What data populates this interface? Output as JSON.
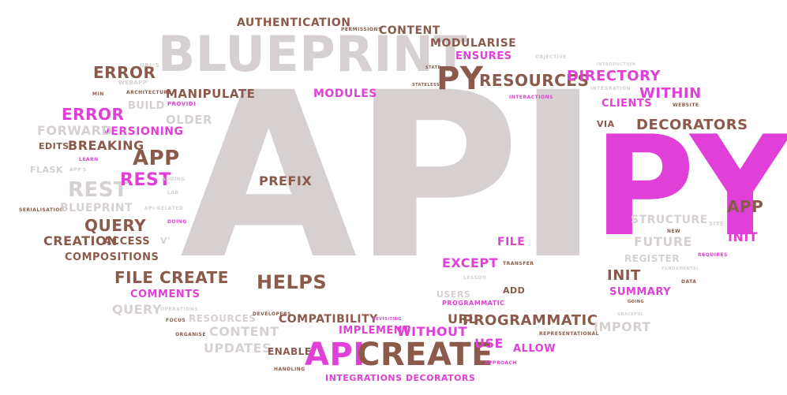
{
  "colors": {
    "brown": "#8b5a4a",
    "magenta": "#e040d8",
    "gray": "#d6d0d0",
    "darkgray": "#c9c2c2",
    "bg": "#ffffff"
  },
  "words": [
    {
      "id": "api-large",
      "text": "API",
      "color": "gray",
      "size": 290
    },
    {
      "id": "py-large",
      "text": "PY",
      "color": "magenta",
      "size": 175
    },
    {
      "id": "blueprint-large",
      "text": "BLUEPRINT",
      "color": "gray",
      "size": 62
    },
    {
      "id": "py-medium",
      "text": "PY",
      "color": "brown",
      "size": 40
    },
    {
      "id": "resources-top",
      "text": "RESOURCES",
      "color": "brown",
      "size": 20
    },
    {
      "id": "directory",
      "text": "DIRECTORY",
      "color": "magenta",
      "size": 18
    },
    {
      "id": "authentication",
      "text": "AUTHENTICATION",
      "color": "brown",
      "size": 14
    },
    {
      "id": "permissions",
      "text": "PERMISSIONS",
      "color": "brown",
      "size": 6
    },
    {
      "id": "content-top",
      "text": "CONTENT",
      "color": "brown",
      "size": 14
    },
    {
      "id": "modularise",
      "text": "MODULARISE",
      "color": "brown",
      "size": 14
    },
    {
      "id": "ensures",
      "text": "ENSURES",
      "color": "magenta",
      "size": 13
    },
    {
      "id": "objective",
      "text": "OBJECTIVE",
      "color": "gray",
      "size": 6
    },
    {
      "id": "state",
      "text": "STATE",
      "color": "brown",
      "size": 5
    },
    {
      "id": "stateless",
      "text": "STATELESS",
      "color": "brown",
      "size": 5
    },
    {
      "id": "modules",
      "text": "MODULES",
      "color": "magenta",
      "size": 14
    },
    {
      "id": "interactions",
      "text": "INTERACTIONS",
      "color": "magenta",
      "size": 6
    },
    {
      "id": "integration",
      "text": "INTEGRATION",
      "color": "gray",
      "size": 6
    },
    {
      "id": "error-top",
      "text": "ERROR",
      "color": "brown",
      "size": 20
    },
    {
      "id": "webapp",
      "text": "WEBAPP",
      "color": "gray",
      "size": 7
    },
    {
      "id": "url-s",
      "text": "URL'S",
      "color": "gray",
      "size": 7
    },
    {
      "id": "manipulate",
      "text": "MANIPULATE",
      "color": "brown",
      "size": 15
    },
    {
      "id": "min",
      "text": "MIN",
      "color": "brown",
      "size": 6
    },
    {
      "id": "architecture",
      "text": "ARCHITECTURE",
      "color": "brown",
      "size": 6
    },
    {
      "id": "build",
      "text": "BUILD",
      "color": "gray",
      "size": 13
    },
    {
      "id": "providi",
      "text": "PROVIDI",
      "color": "magenta",
      "size": 7
    },
    {
      "id": "error-mid",
      "text": "ERROR",
      "color": "magenta",
      "size": 20
    },
    {
      "id": "versioning",
      "text": "VERSIONING",
      "color": "magenta",
      "size": 14
    },
    {
      "id": "older",
      "text": "OLDER",
      "color": "gray",
      "size": 15
    },
    {
      "id": "forward",
      "text": "FORWARD",
      "color": "gray",
      "size": 16
    },
    {
      "id": "edits",
      "text": "EDITS",
      "color": "brown",
      "size": 11
    },
    {
      "id": "breaking",
      "text": "BREAKING",
      "color": "brown",
      "size": 16
    },
    {
      "id": "app-mid",
      "text": "APP",
      "color": "brown",
      "size": 26
    },
    {
      "id": "learn",
      "text": "LEARN",
      "color": "magenta",
      "size": 6
    },
    {
      "id": "flask",
      "text": "FLASK",
      "color": "gray",
      "size": 11
    },
    {
      "id": "app-s",
      "text": "APP'S",
      "color": "gray",
      "size": 6
    },
    {
      "id": "rest-gray",
      "text": "REST",
      "color": "gray",
      "size": 26
    },
    {
      "id": "rest-magenta",
      "text": "REST",
      "color": "magenta",
      "size": 22
    },
    {
      "id": "adding",
      "text": "ADDING",
      "color": "gray",
      "size": 6
    },
    {
      "id": "lab",
      "text": "LAB",
      "color": "gray",
      "size": 6
    },
    {
      "id": "serialisation",
      "text": "SERIALISATION",
      "color": "brown",
      "size": 6
    },
    {
      "id": "blueprint-small",
      "text": "BLUEPRINT",
      "color": "gray",
      "size": 14
    },
    {
      "id": "api-related",
      "text": "API-RELATED",
      "color": "gray",
      "size": 6
    },
    {
      "id": "doing",
      "text": "DOING",
      "color": "magenta",
      "size": 6
    },
    {
      "id": "query-brown",
      "text": "QUERY",
      "color": "brown",
      "size": 20
    },
    {
      "id": "creation",
      "text": "CREATION",
      "color": "brown",
      "size": 16
    },
    {
      "id": "access",
      "text": "ACCESS",
      "color": "brown",
      "size": 13
    },
    {
      "id": "compositions",
      "text": "COMPOSITIONS",
      "color": "brown",
      "size": 13
    },
    {
      "id": "v",
      "text": "V'",
      "color": "gray",
      "size": 11
    },
    {
      "id": "file-create",
      "text": "FILE CREATE",
      "color": "brown",
      "size": 20
    },
    {
      "id": "comments",
      "text": "COMMENTS",
      "color": "magenta",
      "size": 13
    },
    {
      "id": "query-gray",
      "text": "QUERY",
      "color": "gray",
      "size": 16
    },
    {
      "id": "operations",
      "text": "OPERATIONS",
      "color": "gray",
      "size": 6
    },
    {
      "id": "focus",
      "text": "FOCUS",
      "color": "brown",
      "size": 6
    },
    {
      "id": "resources-small",
      "text": "RESOURCES",
      "color": "gray",
      "size": 12
    },
    {
      "id": "developers",
      "text": "DEVELOPERS",
      "color": "brown",
      "size": 6
    },
    {
      "id": "content-mid",
      "text": "CONTENT",
      "color": "gray",
      "size": 16
    },
    {
      "id": "organise",
      "text": "ORGANISE",
      "color": "brown",
      "size": 6
    },
    {
      "id": "updates",
      "text": "UPDATES",
      "color": "gray",
      "size": 16
    },
    {
      "id": "enable",
      "text": "ENABLE",
      "color": "brown",
      "size": 12
    },
    {
      "id": "handling",
      "text": "HANDLING",
      "color": "brown",
      "size": 6
    },
    {
      "id": "prefix",
      "text": "PREFIX",
      "color": "brown",
      "size": 16
    },
    {
      "id": "helps",
      "text": "HELPS",
      "color": "brown",
      "size": 24
    },
    {
      "id": "compatibility",
      "text": "COMPATIBILITY",
      "color": "brown",
      "size": 14
    },
    {
      "id": "implement",
      "text": "IMPLEMENT",
      "color": "magenta",
      "size": 13
    },
    {
      "id": "revisiting",
      "text": "REVISITING",
      "color": "magenta",
      "size": 5
    },
    {
      "id": "without",
      "text": "WITHOUT",
      "color": "magenta",
      "size": 16
    },
    {
      "id": "api-bottom",
      "text": "API",
      "color": "magenta",
      "size": 40
    },
    {
      "id": "create-bottom",
      "text": "CREATE",
      "color": "brown",
      "size": 40
    },
    {
      "id": "integrations-decorators",
      "text": "INTEGRATIONS DECORATORS",
      "color": "magenta",
      "size": 11
    },
    {
      "id": "url",
      "text": "URL",
      "color": "brown",
      "size": 16
    },
    {
      "id": "use",
      "text": "USE",
      "color": "magenta",
      "size": 16
    },
    {
      "id": "allow",
      "text": "ALLOW",
      "color": "magenta",
      "size": 13
    },
    {
      "id": "approach",
      "text": "APPROACH",
      "color": "magenta",
      "size": 6
    },
    {
      "id": "representational",
      "text": "REPRESENTATIONAL",
      "color": "brown",
      "size": 6
    },
    {
      "id": "programmatic-big",
      "text": "PROGRAMMATIC",
      "color": "brown",
      "size": 18
    },
    {
      "id": "programmatic-small",
      "text": "PROGRAMMATIC",
      "color": "magenta",
      "size": 8
    },
    {
      "id": "users",
      "text": "USERS",
      "color": "gray",
      "size": 11
    },
    {
      "id": "add",
      "text": "ADD",
      "color": "brown",
      "size": 11
    },
    {
      "id": "except",
      "text": "EXCEPT",
      "color": "magenta",
      "size": 16
    },
    {
      "id": "file-right",
      "text": "FILE",
      "color": "magenta",
      "size": 14
    },
    {
      "id": "transfer",
      "text": "TRANSFER",
      "color": "brown",
      "size": 6
    },
    {
      "id": "lesson",
      "text": "LESSON",
      "color": "gray",
      "size": 6
    },
    {
      "id": "within",
      "text": "WITHIN",
      "color": "magenta",
      "size": 18
    },
    {
      "id": "clients",
      "text": "CLIENTS",
      "color": "magenta",
      "size": 13
    },
    {
      "id": "website",
      "text": "WEBSITE",
      "color": "brown",
      "size": 6
    },
    {
      "id": "via",
      "text": "VIA",
      "color": "brown",
      "size": 11
    },
    {
      "id": "decorators-right",
      "text": "DECORATORS",
      "color": "brown",
      "size": 18
    },
    {
      "id": "app-right",
      "text": "APP",
      "color": "brown",
      "size": 20
    },
    {
      "id": "init-magenta",
      "text": "INIT",
      "color": "magenta",
      "size": 16
    },
    {
      "id": "site",
      "text": "SITE",
      "color": "gray",
      "size": 7
    },
    {
      "id": "structure",
      "text": "STRUCTURE",
      "color": "gray",
      "size": 14
    },
    {
      "id": "new",
      "text": "NEW",
      "color": "brown",
      "size": 6
    },
    {
      "id": "future",
      "text": "FUTURE",
      "color": "gray",
      "size": 16
    },
    {
      "id": "requires",
      "text": "REQUIRES",
      "color": "magenta",
      "size": 6
    },
    {
      "id": "register",
      "text": "REGISTER",
      "color": "gray",
      "size": 12
    },
    {
      "id": "fundamental",
      "text": "FUNDAMENTAL",
      "color": "gray",
      "size": 5
    },
    {
      "id": "init-brown",
      "text": "INIT",
      "color": "brown",
      "size": 18
    },
    {
      "id": "data",
      "text": "DATA",
      "color": "brown",
      "size": 6
    },
    {
      "id": "summary",
      "text": "SUMMARY",
      "color": "magenta",
      "size": 13
    },
    {
      "id": "going",
      "text": "GOING",
      "color": "brown",
      "size": 5
    },
    {
      "id": "graceful",
      "text": "GRACEFUL",
      "color": "gray",
      "size": 5
    },
    {
      "id": "import",
      "text": "IMPORT",
      "color": "gray",
      "size": 16
    },
    {
      "id": "introduction",
      "text": "INTRODUCTION",
      "color": "gray",
      "size": 5
    }
  ]
}
